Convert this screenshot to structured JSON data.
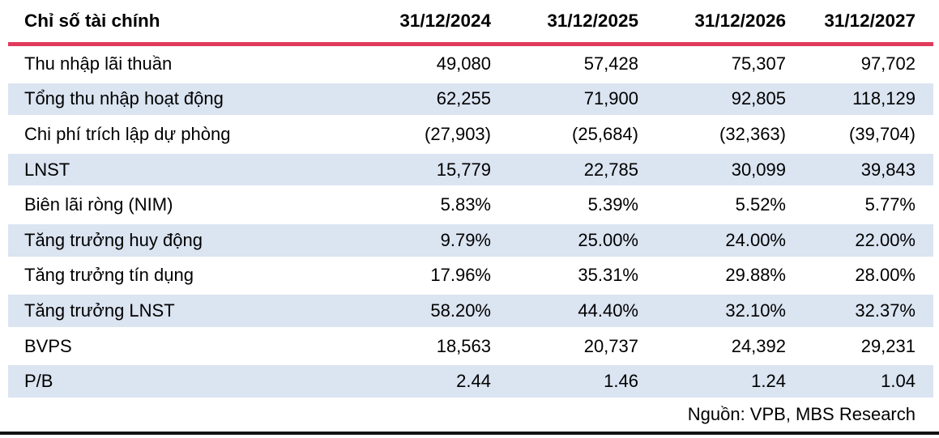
{
  "table": {
    "header": {
      "label": "Chỉ số tài chính",
      "columns": [
        "31/12/2024",
        "31/12/2025",
        "31/12/2026",
        "31/12/2027"
      ]
    },
    "rows": [
      {
        "label": "Thu nhập lãi thuần",
        "values": [
          "49,080",
          "57,428",
          "75,307",
          "97,702"
        ]
      },
      {
        "label": "Tổng thu nhập hoạt động",
        "values": [
          "62,255",
          "71,900",
          "92,805",
          "118,129"
        ]
      },
      {
        "label": "Chi phí trích lập dự phòng",
        "values": [
          "(27,903)",
          "(25,684)",
          "(32,363)",
          "(39,704)"
        ]
      },
      {
        "label": "LNST",
        "values": [
          "15,779",
          "22,785",
          "30,099",
          "39,843"
        ]
      },
      {
        "label": "Biên lãi ròng (NIM)",
        "values": [
          "5.83%",
          "5.39%",
          "5.52%",
          "5.77%"
        ]
      },
      {
        "label": "Tăng trưởng huy động",
        "values": [
          "9.79%",
          "25.00%",
          "24.00%",
          "22.00%"
        ]
      },
      {
        "label": "Tăng trưởng tín dụng",
        "values": [
          "17.96%",
          "35.31%",
          "29.88%",
          "28.00%"
        ]
      },
      {
        "label": "Tăng trưởng LNST",
        "values": [
          "58.20%",
          "44.40%",
          "32.10%",
          "32.37%"
        ]
      },
      {
        "label": "BVPS",
        "values": [
          "18,563",
          "20,737",
          "24,392",
          "29,231"
        ]
      },
      {
        "label": "P/B",
        "values": [
          "2.44",
          "1.46",
          "1.24",
          "1.04"
        ]
      }
    ],
    "source": "Nguồn: VPB, MBS Research"
  },
  "colors": {
    "accent_red": "#e23a5c",
    "row_alt_blue": "#dbe4f1",
    "bottom_bar": "#121212",
    "text": "#000000"
  }
}
